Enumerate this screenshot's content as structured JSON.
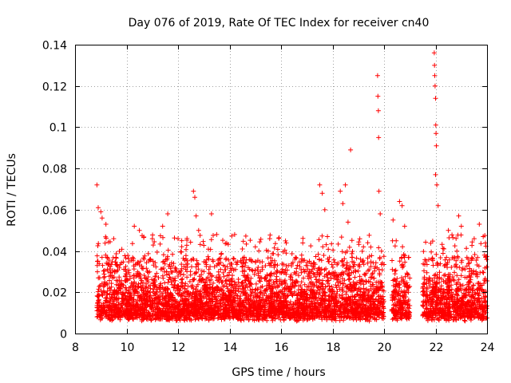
{
  "chart_data": {
    "type": "scatter",
    "title": "Day 076 of 2019, Rate Of TEC Index for receiver cn40",
    "xlabel": "GPS time / hours",
    "ylabel": "ROTI / TECUs",
    "xlim": [
      8,
      24
    ],
    "ylim": [
      0,
      0.14
    ],
    "xticks": [
      "8",
      "10",
      "12",
      "14",
      "16",
      "18",
      "20",
      "22",
      "24"
    ],
    "yticks": [
      "0",
      "0.02",
      "0.04",
      "0.06",
      "0.08",
      "0.1",
      "0.12",
      "0.14"
    ],
    "grid": true,
    "marker": "+",
    "color": "#ff0000",
    "data_gaps_hours": [
      [
        20.0,
        20.3
      ],
      [
        21.0,
        21.5
      ]
    ],
    "series": [
      {
        "name": "ROTI",
        "points": [
          [
            8.85,
            0.072
          ],
          [
            8.9,
            0.061
          ],
          [
            9.0,
            0.059
          ],
          [
            9.05,
            0.056
          ],
          [
            9.2,
            0.053
          ],
          [
            9.5,
            0.046
          ],
          [
            10.3,
            0.052
          ],
          [
            10.5,
            0.05
          ],
          [
            11.0,
            0.046
          ],
          [
            11.4,
            0.052
          ],
          [
            11.6,
            0.058
          ],
          [
            12.0,
            0.046
          ],
          [
            12.6,
            0.069
          ],
          [
            12.65,
            0.066
          ],
          [
            12.7,
            0.057
          ],
          [
            12.8,
            0.05
          ],
          [
            13.3,
            0.058
          ],
          [
            13.5,
            0.048
          ],
          [
            14.2,
            0.048
          ],
          [
            14.5,
            0.041
          ],
          [
            15.0,
            0.042
          ],
          [
            15.5,
            0.04
          ],
          [
            16.2,
            0.039
          ],
          [
            16.8,
            0.038
          ],
          [
            17.5,
            0.072
          ],
          [
            17.6,
            0.068
          ],
          [
            17.7,
            0.06
          ],
          [
            17.8,
            0.047
          ],
          [
            18.3,
            0.069
          ],
          [
            18.4,
            0.063
          ],
          [
            18.5,
            0.072
          ],
          [
            18.6,
            0.054
          ],
          [
            18.7,
            0.089
          ],
          [
            19.2,
            0.042
          ],
          [
            19.75,
            0.125
          ],
          [
            19.76,
            0.115
          ],
          [
            19.78,
            0.108
          ],
          [
            19.79,
            0.095
          ],
          [
            19.8,
            0.069
          ],
          [
            19.85,
            0.058
          ],
          [
            20.35,
            0.055
          ],
          [
            20.6,
            0.064
          ],
          [
            20.7,
            0.062
          ],
          [
            20.8,
            0.052
          ],
          [
            21.95,
            0.136
          ],
          [
            21.96,
            0.13
          ],
          [
            21.97,
            0.125
          ],
          [
            21.98,
            0.12
          ],
          [
            22.0,
            0.114
          ],
          [
            22.01,
            0.101
          ],
          [
            22.02,
            0.097
          ],
          [
            22.03,
            0.091
          ],
          [
            22.0,
            0.077
          ],
          [
            22.05,
            0.072
          ],
          [
            22.1,
            0.062
          ],
          [
            22.5,
            0.05
          ],
          [
            22.9,
            0.057
          ],
          [
            23.0,
            0.052
          ],
          [
            23.5,
            0.046
          ],
          [
            23.7,
            0.053
          ],
          [
            23.85,
            0.047
          ],
          [
            23.9,
            0.038
          ]
        ]
      }
    ]
  }
}
